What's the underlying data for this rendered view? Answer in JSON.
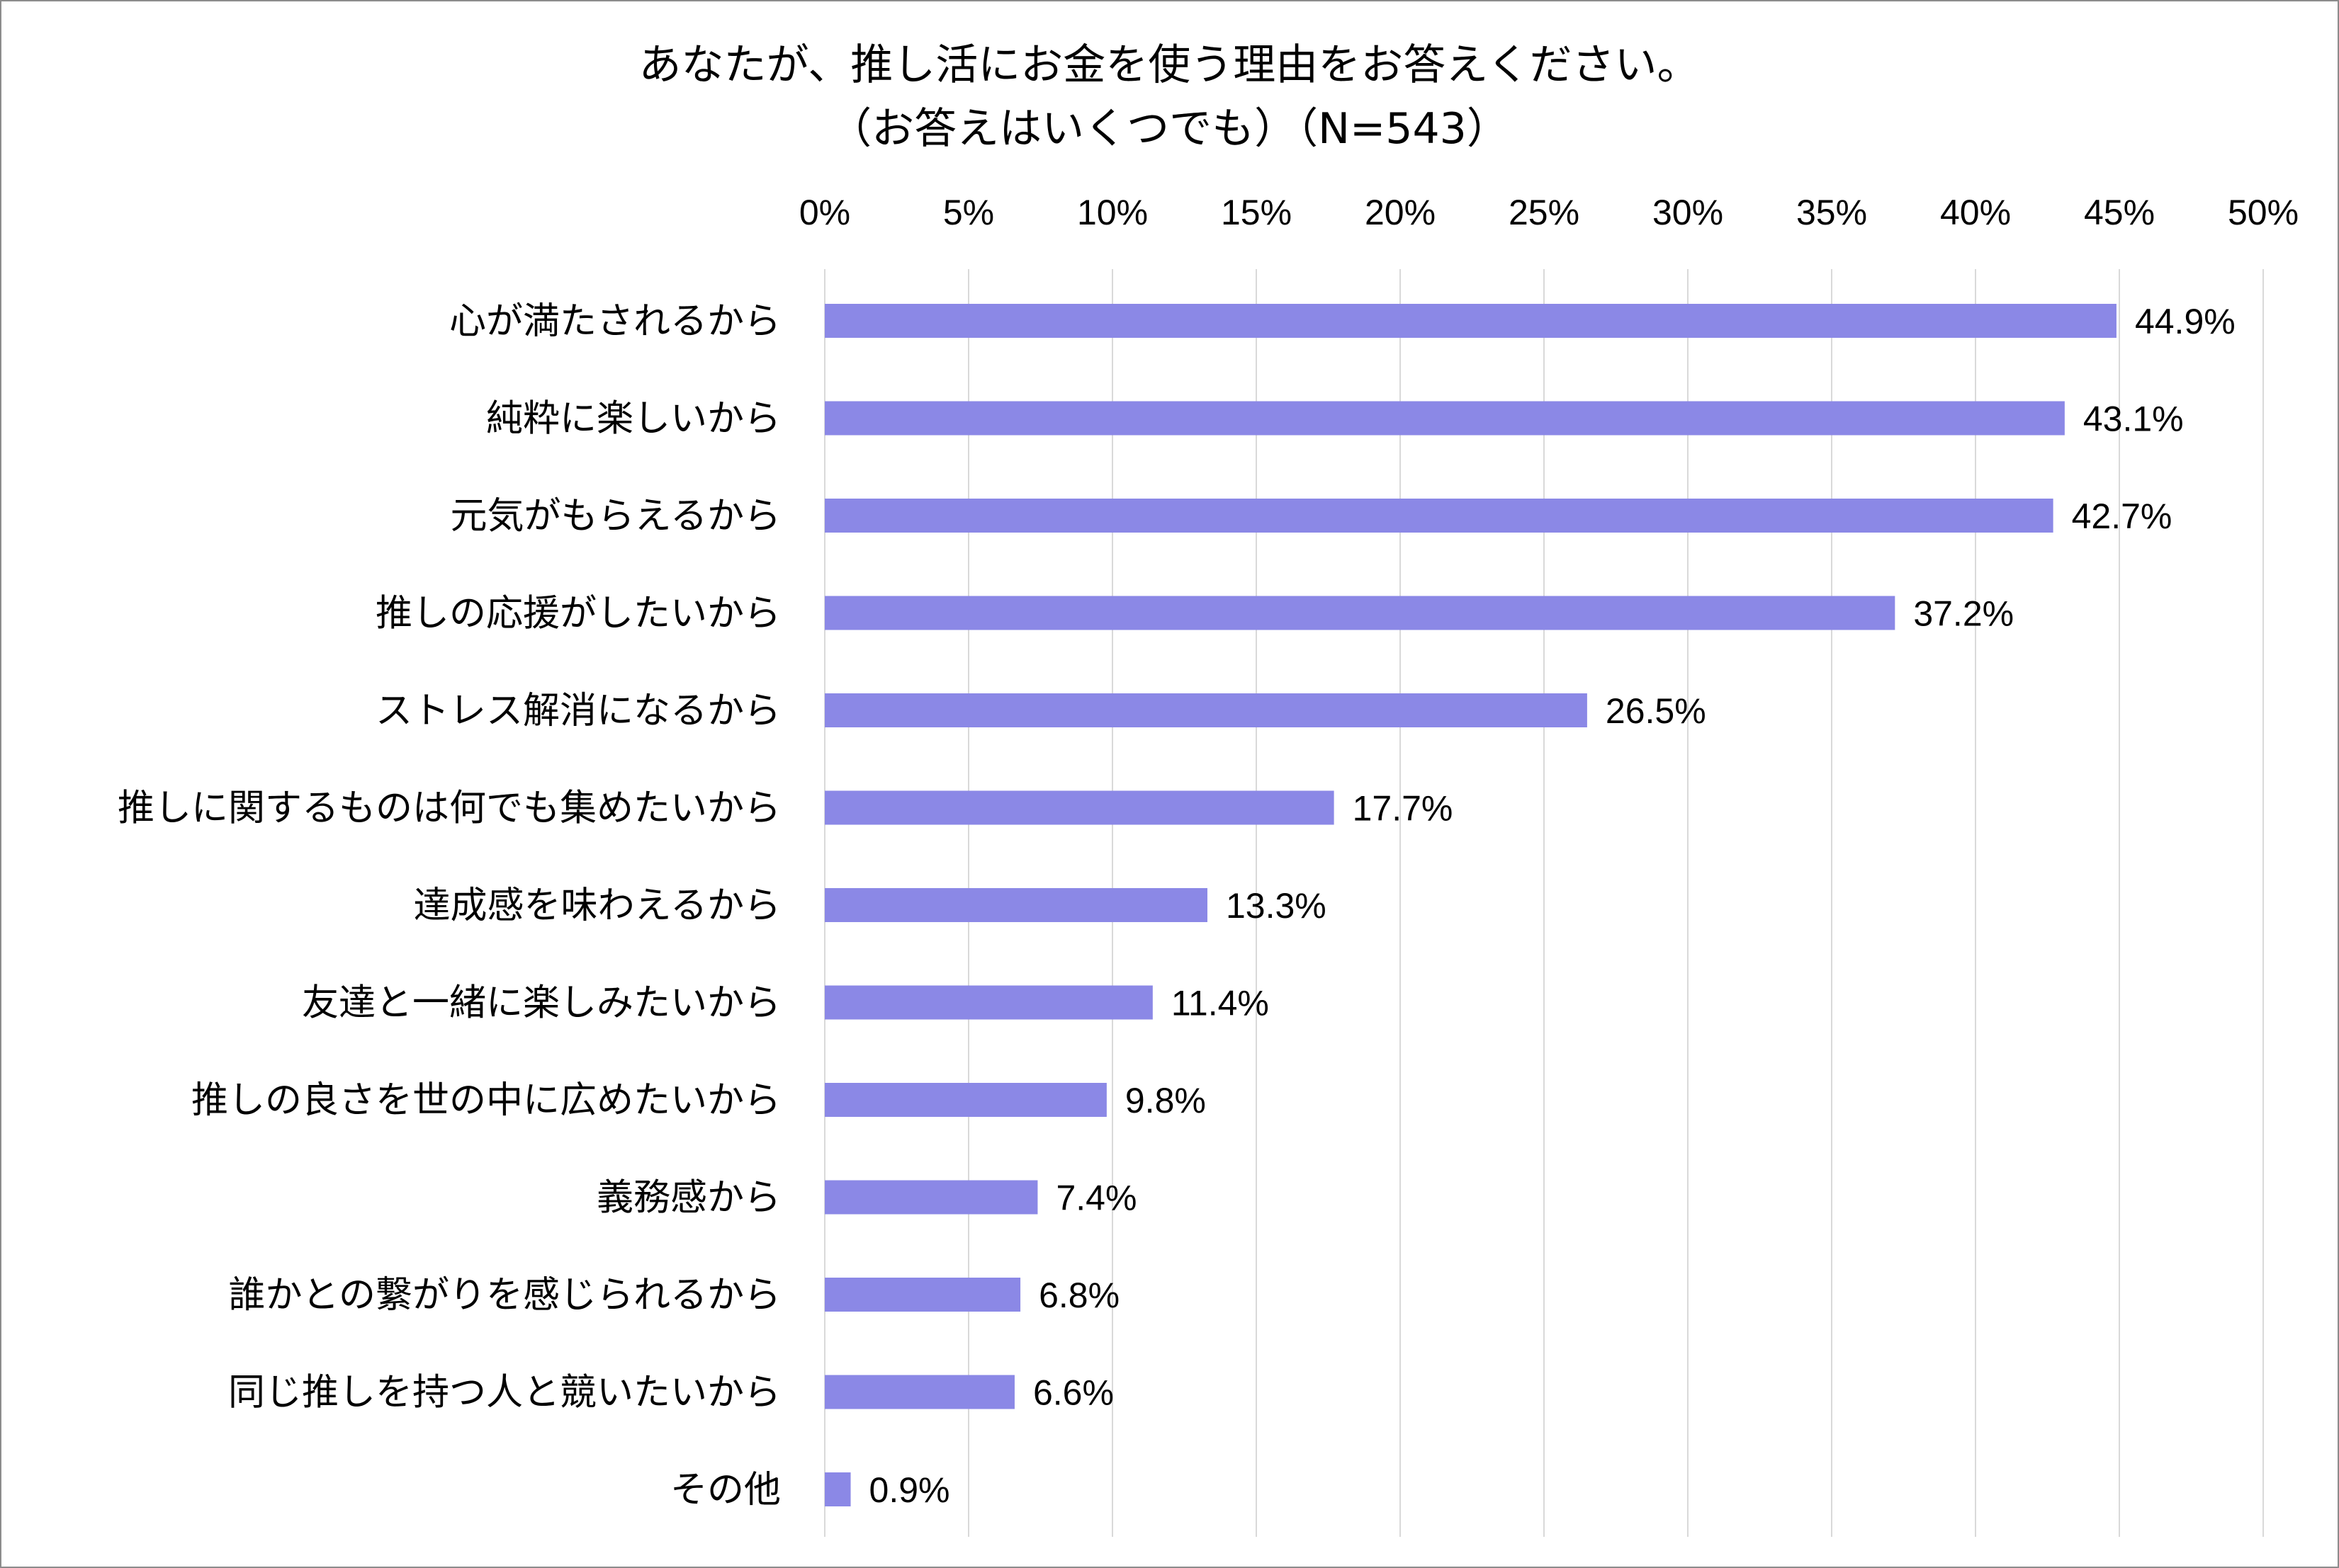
{
  "chart_data": {
    "type": "bar",
    "orientation": "horizontal",
    "title": "あなたが、推し活にお金を使う理由をお答えください。",
    "subtitle": "（お答えはいくつでも）（N=543）",
    "xlim": [
      0,
      50
    ],
    "x_ticks": [
      0,
      5,
      10,
      15,
      20,
      25,
      30,
      35,
      40,
      45,
      50
    ],
    "x_tick_labels": [
      "0%",
      "5%",
      "10%",
      "15%",
      "20%",
      "25%",
      "30%",
      "35%",
      "40%",
      "45%",
      "50%"
    ],
    "axis_position": "top",
    "grid": true,
    "categories": [
      "心が満たされるから",
      "純粋に楽しいから",
      "元気がもらえるから",
      "推しの応援がしたいから",
      "ストレス解消になるから",
      "推しに関するものは何でも集めたいから",
      "達成感を味わえるから",
      "友達と一緒に楽しみたいから",
      "推しの良さを世の中に広めたいから",
      "義務感から",
      "誰かとの繋がりを感じられるから",
      "同じ推しを持つ人と競いたいから",
      "その他"
    ],
    "values": [
      44.9,
      43.1,
      42.7,
      37.2,
      26.5,
      17.7,
      13.3,
      11.4,
      9.8,
      7.4,
      6.8,
      6.6,
      0.9
    ],
    "value_labels": [
      "44.9%",
      "43.1%",
      "42.7%",
      "37.2%",
      "26.5%",
      "17.7%",
      "13.3%",
      "11.4%",
      "9.8%",
      "7.4%",
      "6.8%",
      "6.6%",
      "0.9%"
    ],
    "bar_color": "#8b88e6"
  }
}
